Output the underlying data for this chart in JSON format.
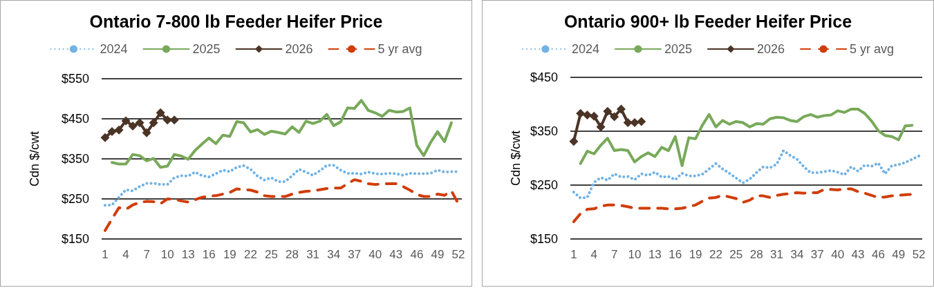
{
  "chart_data": [
    {
      "type": "line",
      "title": "Ontario 7-800 lb Feeder Heifer Price",
      "ylabel": "Cdn $/cwt",
      "categories": [
        "1",
        null,
        null,
        "4",
        null,
        null,
        "7",
        null,
        null,
        "10",
        null,
        null,
        "13",
        null,
        null,
        "16",
        null,
        null,
        "19",
        null,
        null,
        "22",
        null,
        null,
        "25",
        null,
        null,
        "28",
        null,
        null,
        "31",
        null,
        null,
        "34",
        null,
        null,
        "37",
        null,
        null,
        "40",
        null,
        null,
        "43",
        null,
        null,
        "46",
        null,
        null,
        "49",
        null,
        null,
        "52"
      ],
      "ylim": [
        150,
        550
      ],
      "yticks": [
        {
          "value": 150,
          "label": "$150"
        },
        {
          "value": 250,
          "label": "$250"
        },
        {
          "value": 350,
          "label": "$350"
        },
        {
          "value": 450,
          "label": "$450"
        },
        {
          "value": 550,
          "label": "$550"
        }
      ],
      "grid": "y",
      "legend": "top",
      "series": [
        {
          "name": "2024",
          "color": "#71b2e4",
          "line_style": "dotted",
          "values": [
            234,
            235,
            254,
            273,
            270,
            281,
            289,
            289,
            286,
            286,
            303,
            308,
            307,
            317,
            308,
            305,
            313,
            322,
            318,
            329,
            333,
            324,
            307,
            297,
            303,
            293,
            293,
            308,
            324,
            317,
            309,
            320,
            334,
            334,
            322,
            314,
            314,
            312,
            317,
            313,
            312,
            314,
            313,
            309,
            314,
            313,
            313,
            314,
            322,
            317,
            318,
            318
          ]
        },
        {
          "name": "2025",
          "color": "#78a95a",
          "line_style": "solid",
          "values": [
            null,
            341,
            337,
            337,
            361,
            358,
            345,
            351,
            329,
            332,
            361,
            357,
            349,
            371,
            387,
            402,
            388,
            409,
            406,
            443,
            440,
            417,
            423,
            411,
            419,
            416,
            412,
            430,
            416,
            444,
            438,
            444,
            461,
            433,
            442,
            477,
            476,
            496,
            471,
            465,
            456,
            471,
            467,
            468,
            477,
            384,
            358,
            391,
            418,
            393,
            440,
            null
          ]
        },
        {
          "name": "2026",
          "color": "#4b3426",
          "line_style": "solid",
          "marker": "diamond",
          "values": [
            403,
            418,
            422,
            445,
            432,
            440,
            415,
            440,
            465,
            447,
            447,
            null,
            null,
            null,
            null,
            null,
            null,
            null,
            null,
            null,
            null,
            null,
            null,
            null,
            null,
            null,
            null,
            null,
            null,
            null,
            null,
            null,
            null,
            null,
            null,
            null,
            null,
            null,
            null,
            null,
            null,
            null,
            null,
            null,
            null,
            null,
            null,
            null,
            null,
            null,
            null,
            null
          ]
        },
        {
          "name": "5 yr avg",
          "color": "#d03d0a",
          "line_style": "dashed",
          "values": [
            171,
            200,
            228,
            224,
            235,
            241,
            244,
            243,
            238,
            250,
            249,
            245,
            242,
            248,
            254,
            257,
            258,
            262,
            266,
            275,
            273,
            272,
            267,
            258,
            256,
            256,
            256,
            262,
            266,
            269,
            270,
            273,
            276,
            277,
            277,
            288,
            298,
            294,
            288,
            286,
            288,
            288,
            288,
            281,
            272,
            261,
            256,
            256,
            262,
            259,
            270,
            238
          ]
        }
      ]
    },
    {
      "type": "line",
      "title": "Ontario 900+ lb Feeder Heifer Price",
      "ylabel": "Cdn $/cwt",
      "categories": [
        "1",
        null,
        null,
        "4",
        null,
        null,
        "7",
        null,
        null,
        "10",
        null,
        null,
        "13",
        null,
        null,
        "16",
        null,
        null,
        "19",
        null,
        null,
        "22",
        null,
        null,
        "25",
        null,
        null,
        "28",
        null,
        null,
        "31",
        null,
        null,
        "34",
        null,
        null,
        "37",
        null,
        null,
        "40",
        null,
        null,
        "43",
        null,
        null,
        "46",
        null,
        null,
        "49",
        null,
        null,
        "52"
      ],
      "ylim": [
        150,
        450
      ],
      "yticks": [
        {
          "value": 150,
          "label": "$150"
        },
        {
          "value": 250,
          "label": "$250"
        },
        {
          "value": 350,
          "label": "$350"
        },
        {
          "value": 450,
          "label": "$450"
        }
      ],
      "grid": "y",
      "legend": "top",
      "series": [
        {
          "name": "2024",
          "color": "#71b2e4",
          "line_style": "dotted",
          "values": [
            237,
            226,
            227,
            255,
            264,
            259,
            271,
            265,
            266,
            260,
            271,
            268,
            274,
            265,
            266,
            260,
            272,
            267,
            267,
            270,
            280,
            290,
            280,
            272,
            263,
            254,
            261,
            273,
            284,
            282,
            289,
            314,
            305,
            298,
            284,
            273,
            273,
            275,
            277,
            274,
            269,
            284,
            276,
            287,
            285,
            291,
            271,
            286,
            288,
            292,
            298,
            304
          ]
        },
        {
          "name": "2025",
          "color": "#78a95a",
          "line_style": "solid",
          "values": [
            null,
            290,
            313,
            308,
            324,
            337,
            314,
            316,
            314,
            293,
            303,
            310,
            303,
            320,
            314,
            340,
            286,
            338,
            336,
            361,
            381,
            358,
            370,
            363,
            368,
            366,
            358,
            364,
            363,
            373,
            376,
            375,
            370,
            368,
            377,
            381,
            376,
            379,
            380,
            388,
            385,
            391,
            391,
            383,
            369,
            351,
            342,
            340,
            334,
            360,
            361,
            null
          ]
        },
        {
          "name": "2026",
          "color": "#4b3426",
          "line_style": "solid",
          "marker": "diamond",
          "values": [
            331,
            383,
            380,
            378,
            358,
            387,
            377,
            391,
            366,
            366,
            368,
            null,
            null,
            null,
            null,
            null,
            null,
            null,
            null,
            null,
            null,
            null,
            null,
            null,
            null,
            null,
            null,
            null,
            null,
            null,
            null,
            null,
            null,
            null,
            null,
            null,
            null,
            null,
            null,
            null,
            null,
            null,
            null,
            null,
            null,
            null,
            null,
            null,
            null,
            null,
            null,
            null
          ]
        },
        {
          "name": "5 yr avg",
          "color": "#d03d0a",
          "line_style": "dashed",
          "values": [
            182,
            197,
            205,
            206,
            211,
            213,
            213,
            212,
            210,
            207,
            207,
            207,
            207,
            207,
            206,
            206,
            207,
            210,
            213,
            220,
            226,
            227,
            231,
            228,
            225,
            218,
            222,
            230,
            230,
            227,
            231,
            233,
            234,
            236,
            235,
            236,
            236,
            242,
            242,
            241,
            243,
            243,
            238,
            235,
            231,
            227,
            228,
            230,
            231,
            232,
            233,
            null
          ]
        }
      ]
    }
  ]
}
